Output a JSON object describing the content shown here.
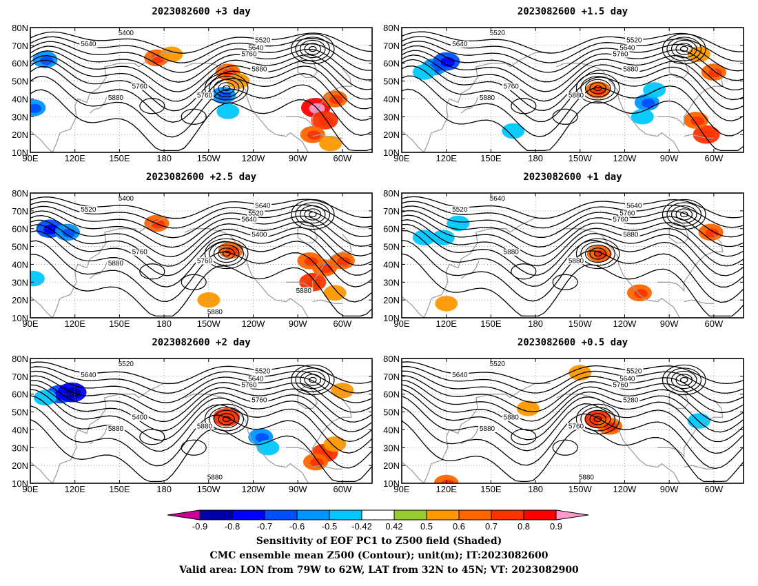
{
  "panels": [
    {
      "title": "2023082600 +3 day",
      "lead": "+3 day",
      "contour_labels": [
        "5400",
        "5640",
        "5520",
        "5640",
        "5760",
        "5760",
        "5880",
        "5760",
        "5880"
      ],
      "shading": [
        {
          "lon": 100,
          "lat": 62,
          "v": -0.6
        },
        {
          "lon": 92,
          "lat": 35,
          "v": -0.6
        },
        {
          "lon": -140,
          "lat": 42,
          "v": -0.6
        },
        {
          "lon": -137,
          "lat": 33,
          "v": -0.5
        },
        {
          "lon": -137,
          "lat": 55,
          "v": 0.6
        },
        {
          "lon": -130,
          "lat": 50,
          "v": 0.5
        },
        {
          "lon": 175,
          "lat": 63,
          "v": 0.6
        },
        {
          "lon": 185,
          "lat": 65,
          "v": 0.5
        },
        {
          "lon": -78,
          "lat": 35,
          "v": 0.8
        },
        {
          "lon": -72,
          "lat": 28,
          "v": 0.7
        },
        {
          "lon": -80,
          "lat": 20,
          "v": 0.6
        },
        {
          "lon": -65,
          "lat": 40,
          "v": 0.6
        },
        {
          "lon": -68,
          "lat": 15,
          "v": 0.5
        }
      ]
    },
    {
      "title": "2023082600 +1.5 day",
      "lead": "+1.5 day",
      "contour_labels": [
        "5520",
        "5640",
        "5520",
        "5640",
        "5760",
        "5760",
        "5880",
        "5880",
        "5880"
      ],
      "shading": [
        {
          "lon": 112,
          "lat": 58,
          "v": -0.6
        },
        {
          "lon": 120,
          "lat": 61,
          "v": -0.7
        },
        {
          "lon": 105,
          "lat": 55,
          "v": -0.5
        },
        {
          "lon": -105,
          "lat": 38,
          "v": -0.6
        },
        {
          "lon": -100,
          "lat": 45,
          "v": -0.5
        },
        {
          "lon": -108,
          "lat": 30,
          "v": -0.5
        },
        {
          "lon": 165,
          "lat": 22,
          "v": -0.5
        },
        {
          "lon": -138,
          "lat": 45,
          "v": 0.6
        },
        {
          "lon": -65,
          "lat": 20,
          "v": 0.7
        },
        {
          "lon": -72,
          "lat": 28,
          "v": 0.6
        },
        {
          "lon": -60,
          "lat": 55,
          "v": 0.6
        },
        {
          "lon": -70,
          "lat": 65,
          "v": 0.5
        }
      ]
    },
    {
      "title": "2023082600 +2.5 day",
      "lead": "+2.5 day",
      "contour_labels": [
        "5400",
        "5520",
        "5640",
        "5520",
        "5640",
        "5760",
        "5400",
        "5760",
        "5880",
        "5880",
        "5880"
      ],
      "shading": [
        {
          "lon": 103,
          "lat": 60,
          "v": -0.7
        },
        {
          "lon": 115,
          "lat": 58,
          "v": -0.6
        },
        {
          "lon": 92,
          "lat": 32,
          "v": -0.5
        },
        {
          "lon": -135,
          "lat": 48,
          "v": 0.6
        },
        {
          "lon": 175,
          "lat": 63,
          "v": 0.6
        },
        {
          "lon": -150,
          "lat": 20,
          "v": 0.5
        },
        {
          "lon": -80,
          "lat": 30,
          "v": 0.7
        },
        {
          "lon": -72,
          "lat": 38,
          "v": 0.6
        },
        {
          "lon": -82,
          "lat": 42,
          "v": 0.6
        },
        {
          "lon": -65,
          "lat": 24,
          "v": 0.5
        },
        {
          "lon": -60,
          "lat": 42,
          "v": 0.6
        }
      ]
    },
    {
      "title": "2023082600 +1 day",
      "lead": "+1 day",
      "contour_labels": [
        "5640",
        "5520",
        "5640",
        "5760",
        "5760",
        "5880",
        "5880",
        "5880"
      ],
      "shading": [
        {
          "lon": 105,
          "lat": 55,
          "v": -0.5
        },
        {
          "lon": 118,
          "lat": 55,
          "v": -0.5
        },
        {
          "lon": 128,
          "lat": 63,
          "v": -0.5
        },
        {
          "lon": -137,
          "lat": 46,
          "v": 0.6
        },
        {
          "lon": -110,
          "lat": 24,
          "v": 0.6
        },
        {
          "lon": 120,
          "lat": 18,
          "v": 0.5
        },
        {
          "lon": -62,
          "lat": 58,
          "v": 0.6
        }
      ]
    },
    {
      "title": "2023082600 +2 day",
      "lead": "+2 day",
      "contour_labels": [
        "5520",
        "5640",
        "5520",
        "5640",
        "5760",
        "5400",
        "5760",
        "5880",
        "5880",
        "5880"
      ],
      "shading": [
        {
          "lon": 110,
          "lat": 60,
          "v": -0.7
        },
        {
          "lon": 118,
          "lat": 61,
          "v": -0.8
        },
        {
          "lon": 100,
          "lat": 58,
          "v": -0.5
        },
        {
          "lon": -115,
          "lat": 36,
          "v": -0.6
        },
        {
          "lon": -110,
          "lat": 30,
          "v": -0.5
        },
        {
          "lon": -138,
          "lat": 47,
          "v": 0.7
        },
        {
          "lon": -72,
          "lat": 27,
          "v": 0.7
        },
        {
          "lon": -78,
          "lat": 22,
          "v": 0.6
        },
        {
          "lon": -65,
          "lat": 32,
          "v": 0.5
        },
        {
          "lon": -60,
          "lat": 62,
          "v": 0.5
        }
      ]
    },
    {
      "title": "2023082600 +0.5 day",
      "lead": "+0.5 day",
      "contour_labels": [
        "5520",
        "5640",
        "5520",
        "5640",
        "5760",
        "5880",
        "5280",
        "5760",
        "5880",
        "5880"
      ],
      "shading": [
        {
          "lon": -138,
          "lat": 46,
          "v": 0.7
        },
        {
          "lon": -130,
          "lat": 42,
          "v": 0.6
        },
        {
          "lon": -150,
          "lat": 72,
          "v": 0.5
        },
        {
          "lon": 120,
          "lat": 10,
          "v": 0.6
        },
        {
          "lon": 175,
          "lat": 52,
          "v": 0.5
        },
        {
          "lon": -70,
          "lat": 45,
          "v": -0.5
        }
      ]
    }
  ],
  "axes": {
    "x_ticks": [
      "90E",
      "120E",
      "150E",
      "180",
      "150W",
      "120W",
      "90W",
      "60W"
    ],
    "x_values": [
      90,
      120,
      150,
      180,
      210,
      240,
      270,
      300
    ],
    "y_ticks": [
      "10N",
      "20N",
      "30N",
      "40N",
      "50N",
      "60N",
      "70N",
      "80N"
    ],
    "y_values": [
      10,
      20,
      30,
      40,
      50,
      60,
      70,
      80
    ],
    "lon_range": [
      90,
      320
    ],
    "lat_range": [
      10,
      80
    ],
    "grid": "dotted"
  },
  "colorbar": {
    "ticks": [
      "-0.9",
      "-0.8",
      "-0.7",
      "-0.6",
      "-0.5",
      "-0.42",
      "0.42",
      "0.5",
      "0.6",
      "0.7",
      "0.8",
      "0.9"
    ],
    "colors": [
      "#cc0099",
      "#0000aa",
      "#0000ff",
      "#0050ff",
      "#0096ff",
      "#00c8ff",
      "#ffffff",
      "#99cc33",
      "#ff9900",
      "#ff6600",
      "#ff3300",
      "#ff0000",
      "#ff99cc"
    ]
  },
  "caption": {
    "line1": "Sensitivity of EOF PC1 to Z500 field (Shaded)",
    "line2": "CMC ensemble mean Z500 (Contour); unit(m); IT:2023082600",
    "line3": "Valid area: LON from 79W to 62W, LAT from 32N to 45N; VT: 2023082900"
  }
}
